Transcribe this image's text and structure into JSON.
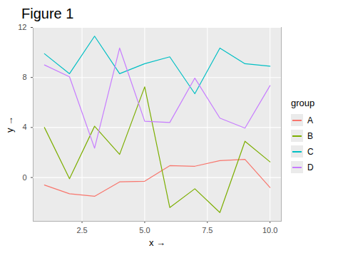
{
  "chart_data": {
    "type": "line",
    "title": "Figure 1",
    "x_label": "x",
    "y_label": "y",
    "legend_title": "group",
    "legend": "right",
    "grid": true,
    "x": [
      1,
      2,
      3,
      4,
      5,
      6,
      7,
      8,
      9,
      10
    ],
    "series": [
      {
        "name": "A",
        "color": "#F8766D",
        "values": [
          -0.6,
          -1.3,
          -1.5,
          -0.35,
          -0.3,
          0.95,
          0.9,
          1.35,
          1.45,
          -0.8
        ]
      },
      {
        "name": "B",
        "color": "#7CAE00",
        "values": [
          4.0,
          -0.1,
          4.1,
          1.85,
          7.25,
          -2.4,
          -0.9,
          -2.8,
          2.9,
          1.25
        ]
      },
      {
        "name": "C",
        "color": "#00BFC4",
        "values": [
          9.9,
          8.3,
          11.3,
          8.3,
          9.1,
          9.65,
          6.7,
          10.35,
          9.1,
          8.9
        ]
      },
      {
        "name": "D",
        "color": "#C77CFF",
        "values": [
          9.0,
          8.05,
          2.35,
          10.35,
          4.5,
          4.4,
          7.95,
          4.75,
          3.95,
          7.35
        ]
      }
    ],
    "xlim": [
      0.55,
      10.45
    ],
    "xticks": [
      2.5,
      {
        "value": 5,
        "label": "5.0"
      },
      7.5,
      {
        "value": 10,
        "label": "10.0"
      }
    ],
    "ylim": [
      -3.5,
      12.0
    ],
    "yticks": [
      0,
      4,
      8,
      12
    ]
  }
}
